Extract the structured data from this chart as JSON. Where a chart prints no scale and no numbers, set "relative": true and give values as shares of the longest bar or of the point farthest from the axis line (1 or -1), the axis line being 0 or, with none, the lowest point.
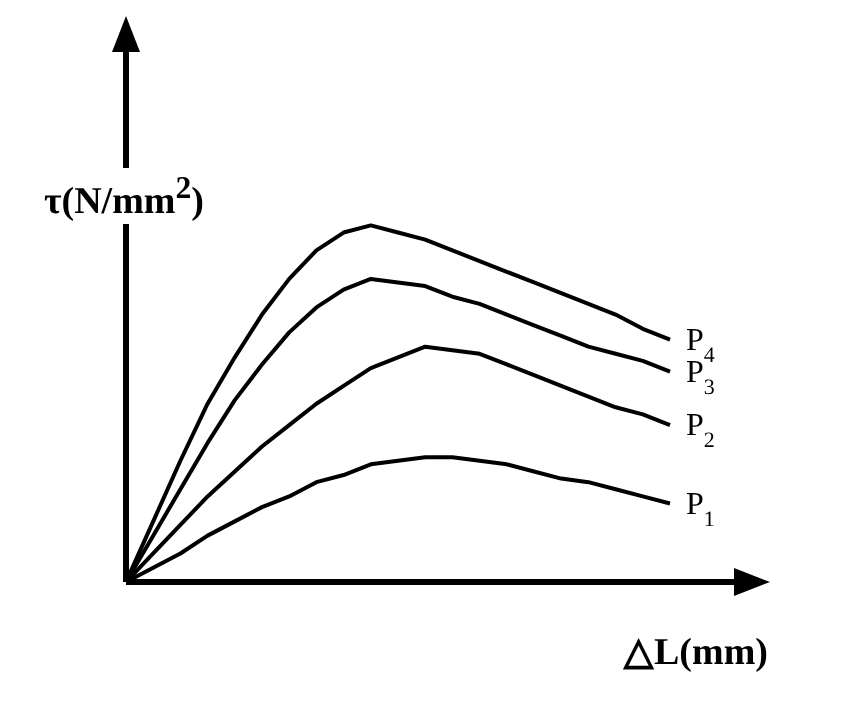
{
  "chart_data": {
    "type": "line",
    "relative": true,
    "xlabel": "△L(mm)",
    "ylabel": "τ(N/mm$^{2}$)",
    "categories": [
      null,
      null,
      null,
      null,
      null,
      null,
      null,
      null,
      null,
      null,
      null,
      null,
      null,
      null,
      null,
      null,
      null,
      null,
      null,
      null,
      null
    ],
    "grid": false,
    "legend": false,
    "line_style": "solid",
    "series": [
      {
        "name": "P$_{1}$",
        "color": "#000000",
        "values": [
          0,
          0.04,
          0.08,
          0.13,
          0.17,
          0.21,
          0.24,
          0.28,
          0.3,
          0.33,
          0.34,
          0.35,
          0.35,
          0.34,
          0.33,
          0.31,
          0.29,
          0.28,
          0.26,
          0.24,
          0.22
        ]
      },
      {
        "name": "P$_{2}$",
        "color": "#000000",
        "values": [
          0,
          0.08,
          0.16,
          0.24,
          0.31,
          0.38,
          0.44,
          0.5,
          0.55,
          0.6,
          0.63,
          0.66,
          0.65,
          0.64,
          0.61,
          0.58,
          0.55,
          0.52,
          0.49,
          0.47,
          0.44
        ]
      },
      {
        "name": "P$_{3}$",
        "color": "#000000",
        "values": [
          0,
          0.13,
          0.26,
          0.39,
          0.51,
          0.61,
          0.7,
          0.77,
          0.82,
          0.85,
          0.84,
          0.83,
          0.8,
          0.78,
          0.75,
          0.72,
          0.69,
          0.66,
          0.64,
          0.62,
          0.59
        ]
      },
      {
        "name": "P$_{4}$",
        "color": "#000000",
        "values": [
          0,
          0.17,
          0.34,
          0.5,
          0.63,
          0.75,
          0.85,
          0.93,
          0.98,
          1,
          0.98,
          0.96,
          0.93,
          0.9,
          0.87,
          0.84,
          0.81,
          0.78,
          0.75,
          0.71,
          0.68
        ]
      }
    ]
  }
}
